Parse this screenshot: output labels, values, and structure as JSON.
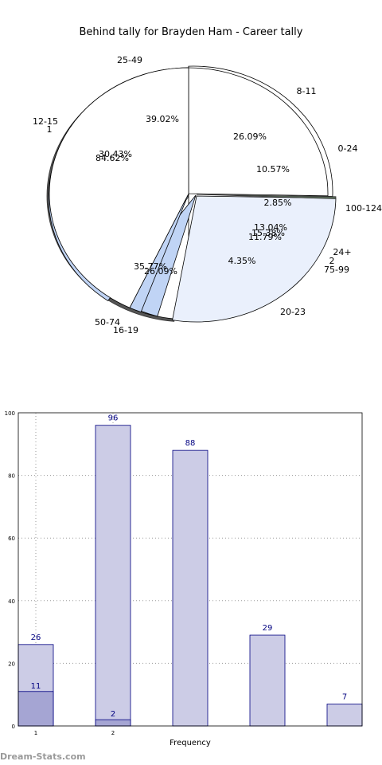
{
  "chart_data": [
    {
      "type": "pie",
      "title": "Behind tally for Brayden Ham - Career tally",
      "series": [
        {
          "name": "",
          "slices": [
            {
              "label": "0-24",
              "value": 10.57
            },
            {
              "label": "8-11",
              "value": 26.09
            },
            {
              "label": "25-49",
              "value": 39.02
            },
            {
              "label": "12-15",
              "value": 30.43
            },
            {
              "label": "1",
              "value": 84.62
            },
            {
              "label": "50-74",
              "value": 35.77
            },
            {
              "label": "16-19",
              "value": 26.09
            },
            {
              "label": "20-23",
              "value": 13.04
            },
            {
              "label": "75-99",
              "value": 11.79
            },
            {
              "label": "2",
              "value": 15.38
            },
            {
              "label": "24+",
              "value": 4.35
            },
            {
              "label": "100-124",
              "value": 2.85
            }
          ]
        }
      ]
    },
    {
      "type": "bar",
      "title": "",
      "xlabel": "Frequency",
      "ylabel": "",
      "ylim": [
        0,
        100
      ],
      "yticks": [
        0,
        20,
        40,
        60,
        80,
        100
      ],
      "xticks": [
        "1",
        "2"
      ],
      "grid": true,
      "series": [
        {
          "name": "",
          "values": [
            26,
            96,
            88,
            29,
            7
          ]
        },
        {
          "name": "",
          "values": [
            11,
            2
          ]
        }
      ]
    }
  ],
  "footer": {
    "watermark": "Dream-Stats.com"
  },
  "colors": {
    "bar_fill": "#ccccE6",
    "bar_overlay": "#a5a5d3",
    "bar_edge": "#000080",
    "label_color": "#000080",
    "pie_white": "#ffffff",
    "pie_light": "#eaf0fc",
    "pie_blue": "#c0d4f5"
  }
}
